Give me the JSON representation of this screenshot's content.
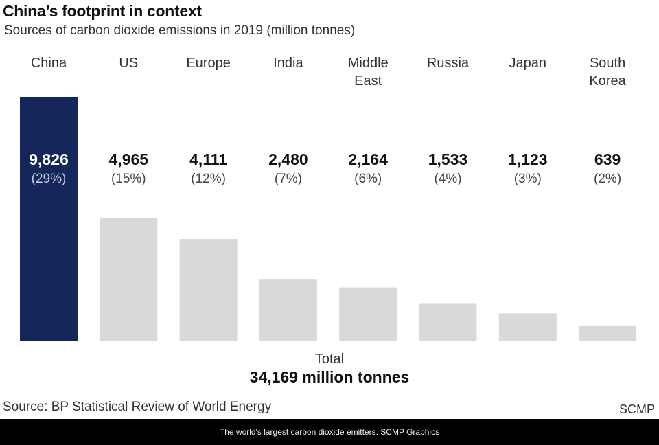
{
  "title": "China’s footprint in context",
  "subtitle": "Sources of carbon dioxide emissions in 2019 (million tonnes)",
  "total_label": "Total",
  "total_value": "34,169 million tonnes",
  "source": "Source: BP Statistical Review of World Energy",
  "brand": "SCMP",
  "caption": "The world's largest carbon dioxide emitters. SCMP Graphics",
  "colors": {
    "highlight": "#15265a",
    "bar": "#d9d9d9"
  },
  "chart_data": {
    "type": "bar",
    "title": "China’s footprint in context",
    "categories": [
      [
        "China"
      ],
      [
        "US"
      ],
      [
        "Europe"
      ],
      [
        "India"
      ],
      [
        "Middle",
        "East"
      ],
      [
        "Russia"
      ],
      [
        "Japan"
      ],
      [
        "South",
        "Korea"
      ]
    ],
    "values": [
      9826,
      4965,
      4111,
      2480,
      2164,
      1533,
      1123,
      639
    ],
    "value_labels": [
      "9,826",
      "4,965",
      "4,111",
      "2,480",
      "2,164",
      "1,533",
      "1,123",
      "639"
    ],
    "share_labels": [
      "(29%)",
      "(15%)",
      "(12%)",
      "(7%)",
      "(6%)",
      "(4%)",
      "(3%)",
      "(2%)"
    ],
    "highlight_index": 0,
    "ylim": [
      0,
      9826
    ]
  }
}
